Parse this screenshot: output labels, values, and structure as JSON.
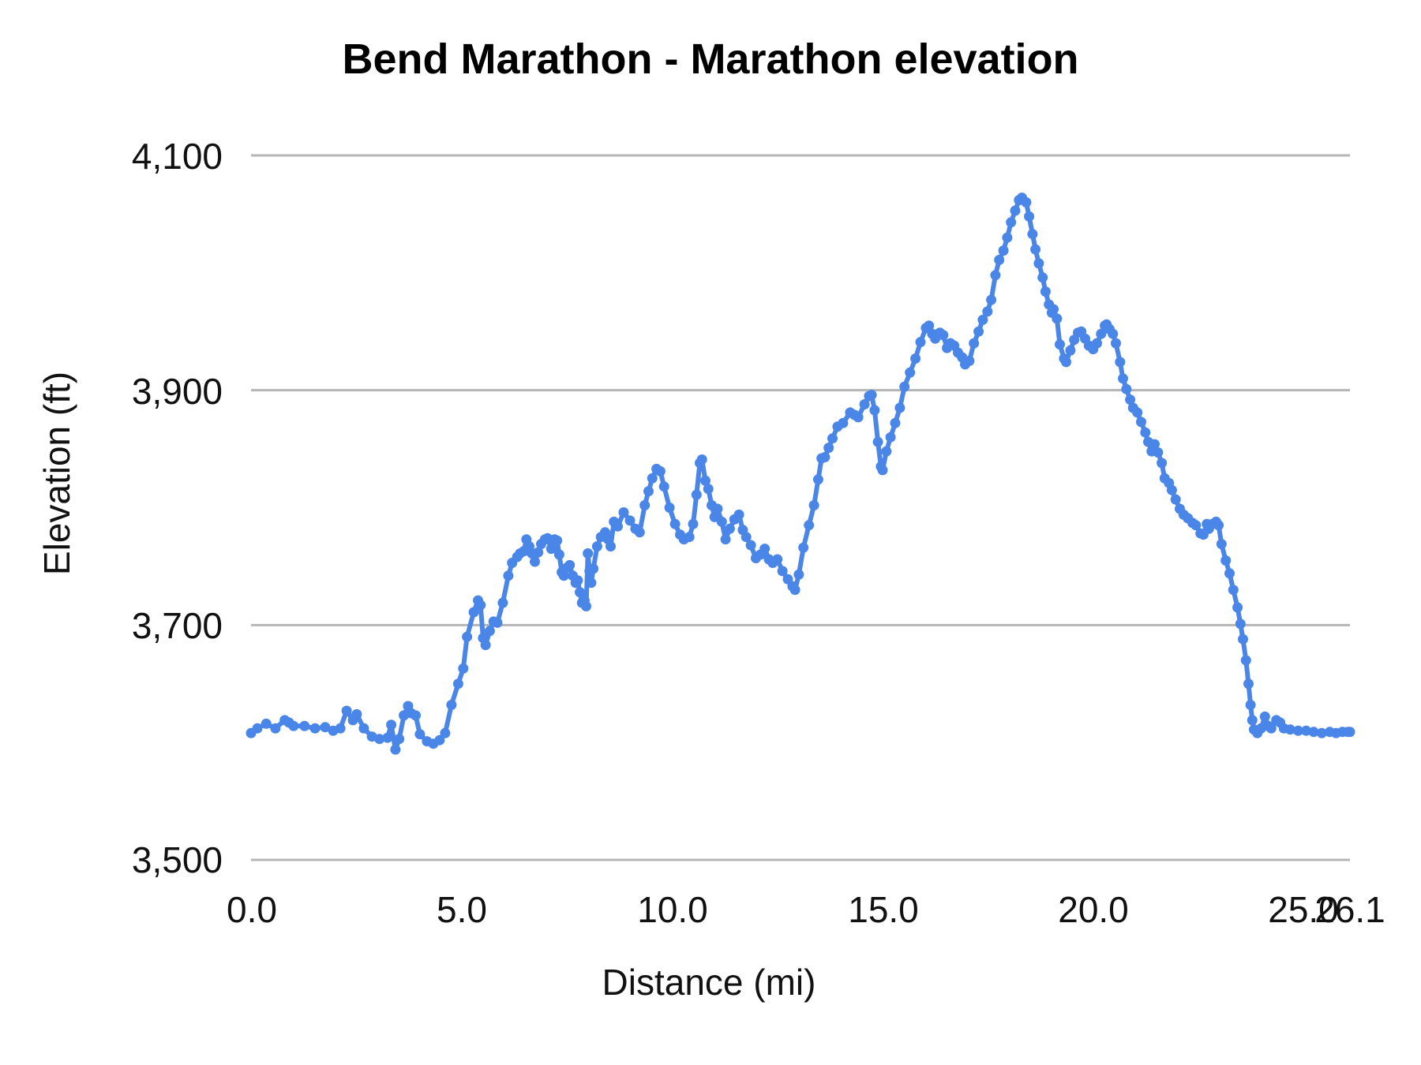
{
  "page": {
    "background_color": "#ffffff"
  },
  "chart_data": {
    "type": "line",
    "title": "Bend Marathon - Marathon elevation",
    "xlabel": "Distance (mi)",
    "ylabel": "Elevation (ft)",
    "xlim": [
      0,
      26.1
    ],
    "ylim": [
      3500,
      4100
    ],
    "grid": "horizontal-only",
    "legend": "none",
    "line_color": "#4a86e8",
    "gridline_color": "#b5b5b5",
    "text_color": "#111111",
    "point_style": "filled-circle",
    "y_ticks": [
      {
        "label": "4,100",
        "value": 4100
      },
      {
        "label": "3,900",
        "value": 3900
      },
      {
        "label": "3,700",
        "value": 3700
      },
      {
        "label": "3,500",
        "value": 3500
      }
    ],
    "x_ticks": [
      {
        "label": "0.0",
        "value": 0
      },
      {
        "label": "5.0",
        "value": 5
      },
      {
        "label": "10.0",
        "value": 10
      },
      {
        "label": "15.0",
        "value": 15
      },
      {
        "label": "20.0",
        "value": 20
      },
      {
        "label": "25.0",
        "value": 25
      },
      {
        "label": "26.1",
        "value": 26.1
      }
    ],
    "series_name": "Marathon elevation",
    "points": [
      [
        0.0,
        3608
      ],
      [
        0.15,
        3612
      ],
      [
        0.36,
        3616
      ],
      [
        0.58,
        3612
      ],
      [
        0.8,
        3619
      ],
      [
        0.9,
        3617
      ],
      [
        1.01,
        3614
      ],
      [
        1.27,
        3614
      ],
      [
        1.52,
        3612
      ],
      [
        1.76,
        3613
      ],
      [
        1.95,
        3610
      ],
      [
        2.12,
        3612
      ],
      [
        2.27,
        3627
      ],
      [
        2.42,
        3619
      ],
      [
        2.51,
        3624
      ],
      [
        2.68,
        3612
      ],
      [
        2.87,
        3605
      ],
      [
        3.05,
        3603
      ],
      [
        3.24,
        3604
      ],
      [
        3.33,
        3615
      ],
      [
        3.43,
        3594
      ],
      [
        3.52,
        3603
      ],
      [
        3.63,
        3623
      ],
      [
        3.73,
        3631
      ],
      [
        3.8,
        3625
      ],
      [
        3.91,
        3623
      ],
      [
        4.01,
        3607
      ],
      [
        4.18,
        3601
      ],
      [
        4.33,
        3599
      ],
      [
        4.48,
        3602
      ],
      [
        4.61,
        3608
      ],
      [
        4.76,
        3632
      ],
      [
        4.92,
        3650
      ],
      [
        5.04,
        3663
      ],
      [
        5.13,
        3690
      ],
      [
        5.29,
        3711
      ],
      [
        5.39,
        3721
      ],
      [
        5.45,
        3717
      ],
      [
        5.51,
        3689
      ],
      [
        5.57,
        3683
      ],
      [
        5.67,
        3695
      ],
      [
        5.76,
        3703
      ],
      [
        5.85,
        3702
      ],
      [
        5.98,
        3719
      ],
      [
        6.11,
        3742
      ],
      [
        6.2,
        3753
      ],
      [
        6.32,
        3758
      ],
      [
        6.39,
        3761
      ],
      [
        6.48,
        3763
      ],
      [
        6.54,
        3773
      ],
      [
        6.61,
        3767
      ],
      [
        6.67,
        3761
      ],
      [
        6.74,
        3754
      ],
      [
        6.82,
        3762
      ],
      [
        6.89,
        3769
      ],
      [
        6.98,
        3773
      ],
      [
        7.04,
        3774
      ],
      [
        7.13,
        3765
      ],
      [
        7.21,
        3773
      ],
      [
        7.27,
        3772
      ],
      [
        7.32,
        3760
      ],
      [
        7.38,
        3745
      ],
      [
        7.43,
        3742
      ],
      [
        7.51,
        3749
      ],
      [
        7.57,
        3751
      ],
      [
        7.64,
        3742
      ],
      [
        7.71,
        3736
      ],
      [
        7.76,
        3738
      ],
      [
        7.81,
        3728
      ],
      [
        7.86,
        3719
      ],
      [
        7.92,
        3721
      ],
      [
        7.96,
        3716
      ],
      [
        8.0,
        3761
      ],
      [
        8.04,
        3746
      ],
      [
        8.08,
        3736
      ],
      [
        8.13,
        3748
      ],
      [
        8.22,
        3767
      ],
      [
        8.31,
        3775
      ],
      [
        8.41,
        3779
      ],
      [
        8.48,
        3773
      ],
      [
        8.54,
        3767
      ],
      [
        8.62,
        3788
      ],
      [
        8.71,
        3784
      ],
      [
        8.85,
        3796
      ],
      [
        9.0,
        3789
      ],
      [
        9.13,
        3782
      ],
      [
        9.23,
        3779
      ],
      [
        9.35,
        3802
      ],
      [
        9.44,
        3814
      ],
      [
        9.53,
        3825
      ],
      [
        9.63,
        3833
      ],
      [
        9.72,
        3831
      ],
      [
        9.81,
        3818
      ],
      [
        9.94,
        3800
      ],
      [
        10.07,
        3786
      ],
      [
        10.19,
        3777
      ],
      [
        10.28,
        3773
      ],
      [
        10.41,
        3775
      ],
      [
        10.5,
        3786
      ],
      [
        10.58,
        3811
      ],
      [
        10.66,
        3838
      ],
      [
        10.71,
        3841
      ],
      [
        10.79,
        3823
      ],
      [
        10.86,
        3816
      ],
      [
        10.94,
        3802
      ],
      [
        11.01,
        3792
      ],
      [
        11.08,
        3799
      ],
      [
        11.18,
        3788
      ],
      [
        11.27,
        3773
      ],
      [
        11.37,
        3782
      ],
      [
        11.48,
        3790
      ],
      [
        11.59,
        3794
      ],
      [
        11.68,
        3781
      ],
      [
        11.76,
        3775
      ],
      [
        11.87,
        3768
      ],
      [
        11.99,
        3757
      ],
      [
        12.1,
        3760
      ],
      [
        12.2,
        3765
      ],
      [
        12.3,
        3756
      ],
      [
        12.39,
        3753
      ],
      [
        12.5,
        3756
      ],
      [
        12.62,
        3746
      ],
      [
        12.75,
        3739
      ],
      [
        12.86,
        3733
      ],
      [
        12.92,
        3730
      ],
      [
        13.01,
        3743
      ],
      [
        13.12,
        3766
      ],
      [
        13.25,
        3785
      ],
      [
        13.37,
        3802
      ],
      [
        13.47,
        3824
      ],
      [
        13.55,
        3842
      ],
      [
        13.63,
        3843
      ],
      [
        13.72,
        3851
      ],
      [
        13.81,
        3859
      ],
      [
        13.93,
        3869
      ],
      [
        14.06,
        3872
      ],
      [
        14.23,
        3881
      ],
      [
        14.33,
        3879
      ],
      [
        14.42,
        3877
      ],
      [
        14.57,
        3888
      ],
      [
        14.68,
        3895
      ],
      [
        14.74,
        3896
      ],
      [
        14.81,
        3883
      ],
      [
        14.89,
        3856
      ],
      [
        14.96,
        3835
      ],
      [
        15.0,
        3832
      ],
      [
        15.09,
        3848
      ],
      [
        15.19,
        3860
      ],
      [
        15.3,
        3872
      ],
      [
        15.41,
        3885
      ],
      [
        15.52,
        3903
      ],
      [
        15.65,
        3915
      ],
      [
        15.78,
        3927
      ],
      [
        15.9,
        3941
      ],
      [
        16.03,
        3953
      ],
      [
        16.1,
        3955
      ],
      [
        16.18,
        3948
      ],
      [
        16.25,
        3944
      ],
      [
        16.36,
        3949
      ],
      [
        16.44,
        3947
      ],
      [
        16.53,
        3936
      ],
      [
        16.61,
        3940
      ],
      [
        16.7,
        3938
      ],
      [
        16.79,
        3932
      ],
      [
        16.89,
        3928
      ],
      [
        16.96,
        3922
      ],
      [
        17.06,
        3925
      ],
      [
        17.17,
        3940
      ],
      [
        17.28,
        3950
      ],
      [
        17.38,
        3960
      ],
      [
        17.49,
        3967
      ],
      [
        17.58,
        3977
      ],
      [
        17.68,
        3998
      ],
      [
        17.77,
        4011
      ],
      [
        17.87,
        4019
      ],
      [
        17.96,
        4030
      ],
      [
        18.05,
        4043
      ],
      [
        18.15,
        4053
      ],
      [
        18.24,
        4062
      ],
      [
        18.31,
        4064
      ],
      [
        18.41,
        4060
      ],
      [
        18.48,
        4048
      ],
      [
        18.56,
        4033
      ],
      [
        18.63,
        4020
      ],
      [
        18.71,
        4008
      ],
      [
        18.8,
        3996
      ],
      [
        18.87,
        3984
      ],
      [
        18.95,
        3973
      ],
      [
        19.02,
        3966
      ],
      [
        19.06,
        3969
      ],
      [
        19.14,
        3961
      ],
      [
        19.21,
        3939
      ],
      [
        19.31,
        3927
      ],
      [
        19.36,
        3924
      ],
      [
        19.46,
        3934
      ],
      [
        19.55,
        3943
      ],
      [
        19.64,
        3949
      ],
      [
        19.72,
        3950
      ],
      [
        19.81,
        3944
      ],
      [
        19.9,
        3938
      ],
      [
        20.0,
        3935
      ],
      [
        20.09,
        3940
      ],
      [
        20.19,
        3948
      ],
      [
        20.28,
        3955
      ],
      [
        20.32,
        3956
      ],
      [
        20.39,
        3952
      ],
      [
        20.47,
        3948
      ],
      [
        20.54,
        3940
      ],
      [
        20.64,
        3924
      ],
      [
        20.71,
        3910
      ],
      [
        20.79,
        3901
      ],
      [
        20.88,
        3892
      ],
      [
        20.95,
        3885
      ],
      [
        21.05,
        3881
      ],
      [
        21.14,
        3873
      ],
      [
        21.24,
        3864
      ],
      [
        21.31,
        3856
      ],
      [
        21.39,
        3848
      ],
      [
        21.46,
        3854
      ],
      [
        21.54,
        3847
      ],
      [
        21.63,
        3838
      ],
      [
        21.7,
        3825
      ],
      [
        21.8,
        3821
      ],
      [
        21.87,
        3815
      ],
      [
        21.96,
        3807
      ],
      [
        22.06,
        3799
      ],
      [
        22.15,
        3794
      ],
      [
        22.25,
        3791
      ],
      [
        22.36,
        3787
      ],
      [
        22.44,
        3785
      ],
      [
        22.55,
        3778
      ],
      [
        22.62,
        3777
      ],
      [
        22.7,
        3786
      ],
      [
        22.75,
        3782
      ],
      [
        22.83,
        3786
      ],
      [
        22.92,
        3788
      ],
      [
        22.98,
        3785
      ],
      [
        23.05,
        3769
      ],
      [
        23.15,
        3755
      ],
      [
        23.24,
        3744
      ],
      [
        23.33,
        3730
      ],
      [
        23.43,
        3715
      ],
      [
        23.5,
        3701
      ],
      [
        23.56,
        3688
      ],
      [
        23.63,
        3670
      ],
      [
        23.69,
        3650
      ],
      [
        23.74,
        3632
      ],
      [
        23.78,
        3619
      ],
      [
        23.82,
        3611
      ],
      [
        23.9,
        3608
      ],
      [
        23.99,
        3612
      ],
      [
        24.08,
        3622
      ],
      [
        24.16,
        3614
      ],
      [
        24.23,
        3612
      ],
      [
        24.35,
        3619
      ],
      [
        24.44,
        3617
      ],
      [
        24.53,
        3612
      ],
      [
        24.68,
        3611
      ],
      [
        24.87,
        3610
      ],
      [
        25.06,
        3610
      ],
      [
        25.24,
        3609
      ],
      [
        25.43,
        3608
      ],
      [
        25.62,
        3609
      ],
      [
        25.77,
        3608
      ],
      [
        25.92,
        3609
      ],
      [
        26.05,
        3609
      ],
      [
        26.1,
        3609
      ]
    ]
  }
}
